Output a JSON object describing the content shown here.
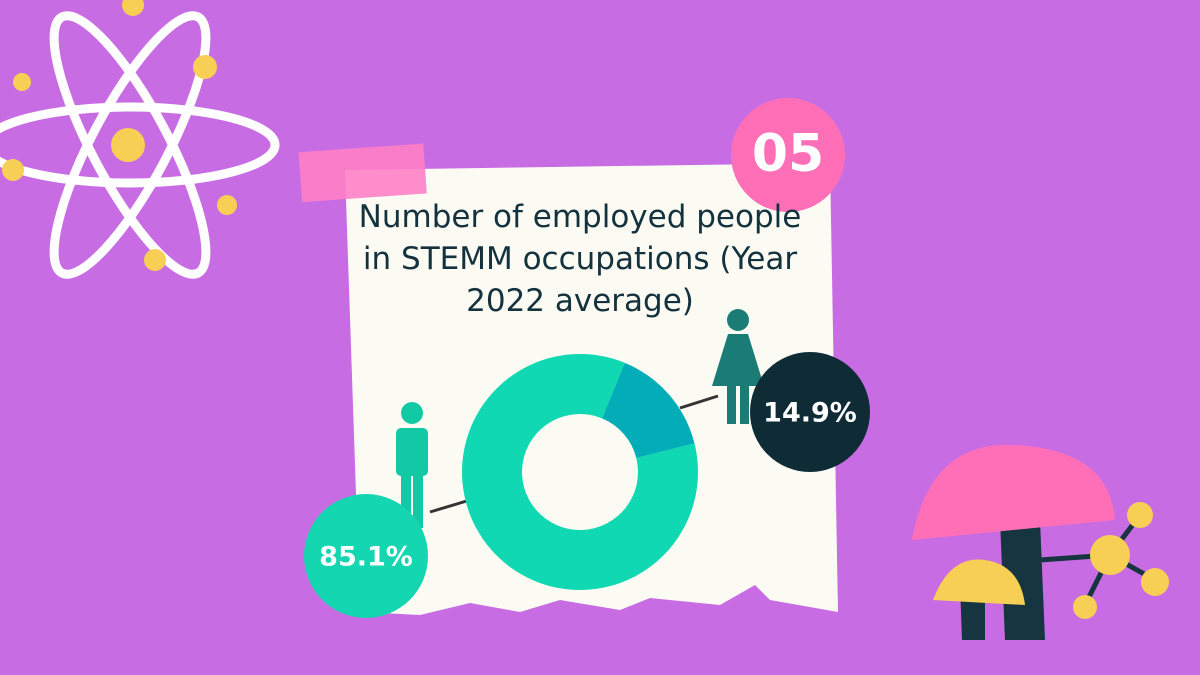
{
  "badge": "05",
  "chart_data": {
    "type": "pie",
    "donut": true,
    "title": "Number of employed people in STEMM occupations (Year 2022 average)",
    "values": [
      85.1,
      14.9
    ],
    "value_labels": [
      "85.1%",
      "14.9%"
    ],
    "colors": [
      "#0fd8b3",
      "#02adb8"
    ]
  }
}
